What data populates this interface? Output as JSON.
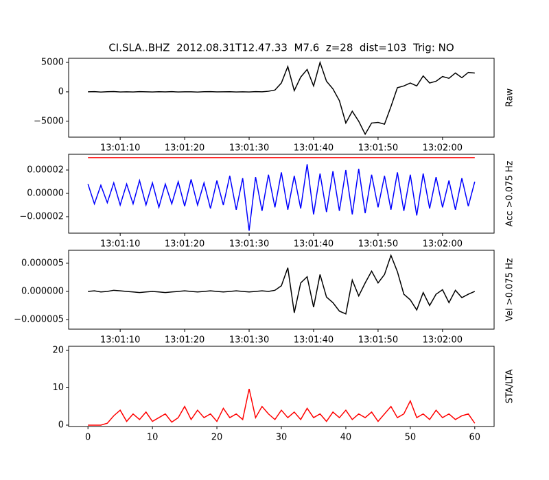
{
  "chart_data": [
    {
      "type": "line",
      "title": "CI.SLA..BHZ  2012.08.31T12.47.33  M7.6  z=28  dist=103  Trig: NO",
      "ylabel": "Raw",
      "xlim": [
        -3,
        63
      ],
      "ylim": [
        -7700,
        5700
      ],
      "xticks": [
        {
          "value": 5,
          "label": "13:01:10"
        },
        {
          "value": 15,
          "label": "13:01:20"
        },
        {
          "value": 25,
          "label": "13:01:30"
        },
        {
          "value": 35,
          "label": "13:01:40"
        },
        {
          "value": 45,
          "label": "13:01:50"
        },
        {
          "value": 55,
          "label": "13:02:00"
        }
      ],
      "yticks": [
        {
          "value": -5000,
          "label": "−5000"
        },
        0,
        5000
      ],
      "x": [
        0,
        1,
        2,
        3,
        4,
        5,
        6,
        7,
        8,
        9,
        10,
        11,
        12,
        13,
        14,
        15,
        16,
        17,
        18,
        19,
        20,
        21,
        22,
        23,
        24,
        25,
        26,
        27,
        28,
        29,
        30,
        31,
        32,
        33,
        34,
        35,
        36,
        37,
        38,
        39,
        40,
        41,
        42,
        43,
        44,
        45,
        46,
        47,
        48,
        49,
        50,
        51,
        52,
        53,
        54,
        55,
        56,
        57,
        58,
        59,
        60
      ],
      "series": [
        {
          "color": "#000000",
          "values": [
            0,
            30,
            -40,
            20,
            50,
            -30,
            10,
            -20,
            40,
            0,
            -30,
            20,
            -10,
            30,
            -20,
            10,
            0,
            -40,
            20,
            30,
            -10,
            0,
            20,
            -30,
            10,
            -20,
            30,
            0,
            100,
            300,
            1500,
            4300,
            200,
            2500,
            3800,
            1000,
            5000,
            1800,
            500,
            -1500,
            -5300,
            -3300,
            -5000,
            -7200,
            -5300,
            -5200,
            -5500,
            -2500,
            700,
            1000,
            1500,
            1000,
            2700,
            1500,
            1800,
            2600,
            2300,
            3200,
            2400,
            3300,
            3200
          ]
        }
      ]
    },
    {
      "type": "line",
      "ylabel": "Acc >0.075 Hz",
      "xlim": [
        -3,
        63
      ],
      "ylim": [
        -3.41e-05,
        3.35e-05
      ],
      "xticks": [
        {
          "value": 5,
          "label": "13:01:10"
        },
        {
          "value": 15,
          "label": "13:01:20"
        },
        {
          "value": 25,
          "label": "13:01:30"
        },
        {
          "value": 35,
          "label": "13:01:40"
        },
        {
          "value": 45,
          "label": "13:01:50"
        },
        {
          "value": 55,
          "label": "13:02:00"
        }
      ],
      "yticks": [
        {
          "value": -2e-05,
          "label": "−0.00002"
        },
        {
          "value": 0,
          "label": "0.00000"
        },
        {
          "value": 2e-05,
          "label": "0.00002"
        }
      ],
      "threshold": {
        "value": 3.06e-05,
        "color": "#ff0000"
      },
      "x": [
        0,
        1,
        2,
        3,
        4,
        5,
        6,
        7,
        8,
        9,
        10,
        11,
        12,
        13,
        14,
        15,
        16,
        17,
        18,
        19,
        20,
        21,
        22,
        23,
        24,
        25,
        26,
        27,
        28,
        29,
        30,
        31,
        32,
        33,
        34,
        35,
        36,
        37,
        38,
        39,
        40,
        41,
        42,
        43,
        44,
        45,
        46,
        47,
        48,
        49,
        50,
        51,
        52,
        53,
        54,
        55,
        56,
        57,
        58,
        59,
        60
      ],
      "series": [
        {
          "color": "#0000ff",
          "values": [
            8e-06,
            -9e-06,
            7e-06,
            -8e-06,
            9e-06,
            -1e-05,
            8e-06,
            -9e-06,
            1.1e-05,
            -1e-05,
            9e-06,
            -1.2e-05,
            8e-06,
            -9e-06,
            1e-05,
            -1.1e-05,
            1.2e-05,
            -1e-05,
            9e-06,
            -1.3e-05,
            1.1e-05,
            -1e-05,
            1.5e-05,
            -1.4e-05,
            1.3e-05,
            -3.2e-05,
            1.4e-05,
            -1.5e-05,
            1.6e-05,
            -1.2e-05,
            1.8e-05,
            -1.4e-05,
            1.5e-05,
            -1.3e-05,
            2.5e-05,
            -1.8e-05,
            1.7e-05,
            -1.6e-05,
            1.9e-05,
            -1.5e-05,
            2e-05,
            -1.8e-05,
            2.1e-05,
            -1.7e-05,
            1.6e-05,
            -1.2e-05,
            1.5e-05,
            -1.4e-05,
            1.8e-05,
            -1.5e-05,
            1.6e-05,
            -1.9e-05,
            1.7e-05,
            -1.3e-05,
            1.4e-05,
            -1.2e-05,
            1.1e-05,
            -1.4e-05,
            1.3e-05,
            -1.1e-05,
            1e-05
          ]
        }
      ]
    },
    {
      "type": "line",
      "ylabel": "Vel >0.075 Hz",
      "xlim": [
        -3,
        63
      ],
      "ylim": [
        -6.7e-06,
        7.3e-06
      ],
      "xticks": [
        {
          "value": 5,
          "label": "13:01:10"
        },
        {
          "value": 15,
          "label": "13:01:20"
        },
        {
          "value": 25,
          "label": "13:01:30"
        },
        {
          "value": 35,
          "label": "13:01:40"
        },
        {
          "value": 45,
          "label": "13:01:50"
        },
        {
          "value": 55,
          "label": "13:02:00"
        }
      ],
      "yticks": [
        {
          "value": -5e-06,
          "label": "−0.000005"
        },
        {
          "value": 0,
          "label": "0.000000"
        },
        {
          "value": 5e-06,
          "label": "0.000005"
        }
      ],
      "x": [
        0,
        1,
        2,
        3,
        4,
        5,
        6,
        7,
        8,
        9,
        10,
        11,
        12,
        13,
        14,
        15,
        16,
        17,
        18,
        19,
        20,
        21,
        22,
        23,
        24,
        25,
        26,
        27,
        28,
        29,
        30,
        31,
        32,
        33,
        34,
        35,
        36,
        37,
        38,
        39,
        40,
        41,
        42,
        43,
        44,
        45,
        46,
        47,
        48,
        49,
        50,
        51,
        52,
        53,
        54,
        55,
        56,
        57,
        58,
        59,
        60
      ],
      "series": [
        {
          "color": "#000000",
          "values": [
            0,
            1e-07,
            -1e-07,
            0,
            2e-07,
            1e-07,
            0,
            -1e-07,
            -2e-07,
            -1e-07,
            0,
            -1e-07,
            -2e-07,
            -1e-07,
            0,
            1e-07,
            0,
            -1e-07,
            0,
            1e-07,
            0,
            -1e-07,
            0,
            1e-07,
            0,
            -1e-07,
            0,
            1e-07,
            0,
            2e-07,
            1e-06,
            4.2e-06,
            -3.8e-06,
            1.5e-06,
            2.6e-06,
            -2.8e-06,
            3e-06,
            -1e-06,
            -2e-06,
            -3.5e-06,
            -4e-06,
            2e-06,
            -8e-07,
            1.5e-06,
            3.6e-06,
            1.5e-06,
            3e-06,
            6.4e-06,
            3.5e-06,
            -5e-07,
            -1.5e-06,
            -3.3e-06,
            -2e-07,
            -2.5e-06,
            -5e-07,
            3e-07,
            -2e-06,
            2e-07,
            -1.1e-06,
            -5e-07,
            0
          ]
        }
      ]
    },
    {
      "type": "line",
      "ylabel": "STA/LTA",
      "xlim": [
        -3,
        63
      ],
      "ylim": [
        -0.37,
        21.1
      ],
      "xticks": [
        0,
        10,
        20,
        30,
        40,
        50,
        60
      ],
      "yticks": [
        0,
        10,
        20
      ],
      "x": [
        0,
        1,
        2,
        3,
        4,
        5,
        6,
        7,
        8,
        9,
        10,
        11,
        12,
        13,
        14,
        15,
        16,
        17,
        18,
        19,
        20,
        21,
        22,
        23,
        24,
        25,
        26,
        27,
        28,
        29,
        30,
        31,
        32,
        33,
        34,
        35,
        36,
        37,
        38,
        39,
        40,
        41,
        42,
        43,
        44,
        45,
        46,
        47,
        48,
        49,
        50,
        51,
        52,
        53,
        54,
        55,
        56,
        57,
        58,
        59,
        60
      ],
      "series": [
        {
          "color": "#ff0000",
          "values": [
            0,
            0,
            0,
            0.5,
            2.5,
            4,
            1,
            3,
            1.5,
            3.5,
            1,
            2,
            3,
            0.8,
            2,
            5,
            1.5,
            4,
            2,
            3,
            1,
            4.5,
            2,
            3,
            1.5,
            9.7,
            2,
            5,
            3,
            1.5,
            4,
            2,
            3.5,
            1.5,
            4.5,
            2,
            3,
            1,
            3.5,
            2,
            4,
            1.5,
            3,
            2,
            3.5,
            1,
            3,
            5,
            2,
            3,
            6.5,
            2,
            3,
            1.5,
            4,
            2,
            3,
            1.5,
            2.5,
            3,
            0.5
          ]
        }
      ]
    }
  ]
}
